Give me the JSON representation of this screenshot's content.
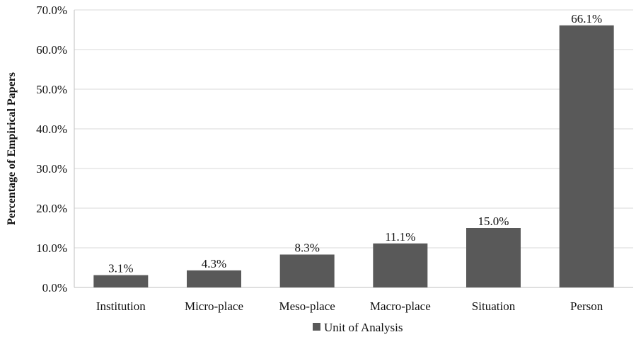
{
  "chart_data": {
    "type": "bar",
    "categories": [
      "Institution",
      "Micro-place",
      "Meso-place",
      "Macro-place",
      "Situation",
      "Person"
    ],
    "series": [
      {
        "name": "Unit of Analysis",
        "values": [
          3.1,
          4.3,
          8.3,
          11.1,
          15.0,
          66.1
        ],
        "labels": [
          "3.1%",
          "4.3%",
          "8.3%",
          "11.1%",
          "15.0%",
          "66.1%"
        ]
      }
    ],
    "ylabel": "Percentage of Empirical Papers",
    "xlabel": "",
    "ylim": [
      0,
      70
    ],
    "yticks": [
      0,
      10,
      20,
      30,
      40,
      50,
      60,
      70
    ],
    "ytick_labels": [
      "0.0%",
      "10.0%",
      "20.0%",
      "30.0%",
      "40.0%",
      "50.0%",
      "60.0%",
      "70.0%"
    ],
    "grid": true,
    "legend": {
      "position": "bottom-center",
      "entries": [
        "Unit of Analysis"
      ]
    },
    "colors": {
      "bar": "#595959"
    }
  }
}
